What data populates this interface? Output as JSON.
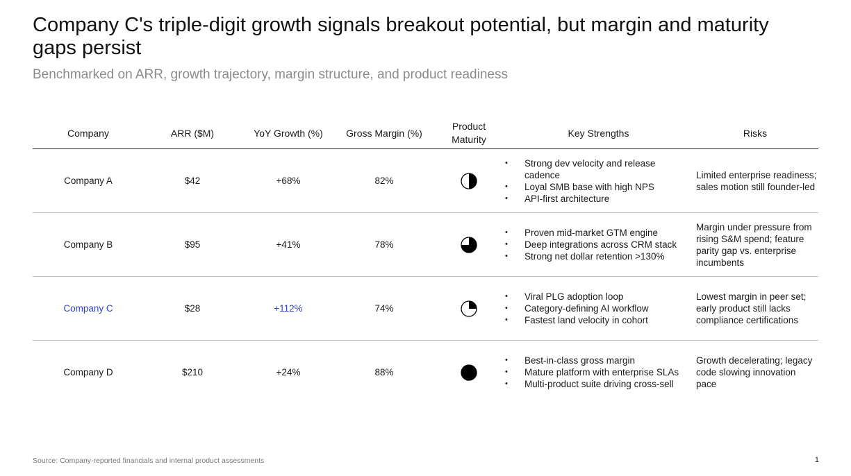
{
  "title": "Company C's triple-digit growth signals breakout potential, but margin and maturity gaps persist",
  "subtitle": "Benchmarked on ARR, growth trajectory, margin structure, and product readiness",
  "columns": [
    "Company",
    "ARR ($M)",
    "YoY Growth (%)",
    "Gross Margin (%)",
    "Product Maturity",
    "Key Strengths",
    "Risks"
  ],
  "rows": [
    {
      "company": "Company A",
      "arr": "$42",
      "growth": "+68%",
      "margin": "82%",
      "maturity": 0.5,
      "highlight": false,
      "strengths": [
        "Strong dev velocity and release cadence",
        "Loyal SMB base with high NPS",
        "API-first architecture"
      ],
      "risks": "Limited enterprise readiness; sales motion still founder-led"
    },
    {
      "company": "Company B",
      "arr": "$95",
      "growth": "+41%",
      "margin": "78%",
      "maturity": 0.75,
      "highlight": false,
      "strengths": [
        "Proven mid-market GTM engine",
        "Deep integrations across CRM stack",
        "Strong net dollar retention >130%"
      ],
      "risks": "Margin under pressure from rising S&M spend; feature parity gap vs. enterprise incumbents"
    },
    {
      "company": "Company C",
      "arr": "$28",
      "growth": "+112%",
      "margin": "74%",
      "maturity": 0.25,
      "highlight": true,
      "strengths": [
        "Viral PLG adoption loop",
        "Category-defining AI workflow",
        "Fastest land velocity in cohort"
      ],
      "risks": "Lowest margin in peer set; early product still lacks compliance certifications"
    },
    {
      "company": "Company D",
      "arr": "$210",
      "growth": "+24%",
      "margin": "88%",
      "maturity": 1.0,
      "highlight": false,
      "strengths": [
        "Best-in-class gross margin",
        "Mature platform with enterprise SLAs",
        "Multi-product suite driving cross-sell"
      ],
      "risks": "Growth decelerating; legacy code slowing innovation pace"
    }
  ],
  "highlight_color": "#3344bb",
  "source": "Source: Company-reported financials and internal product assessments",
  "page_number": "1"
}
